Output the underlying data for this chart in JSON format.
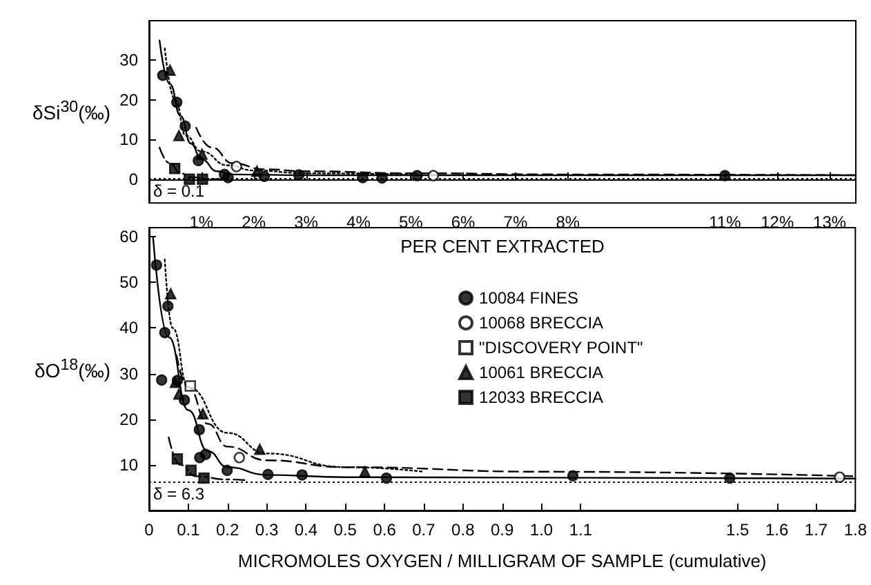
{
  "chart_data": [
    {
      "type": "scatter",
      "xlabel": "PER CENT EXTRACTED",
      "ylabel": "δSi$^{30}$(‰)",
      "xlim": [
        0,
        13.5
      ],
      "ylim": [
        -6,
        40
      ],
      "yticks": [
        0,
        10,
        20,
        30
      ],
      "xticks": [
        {
          "value": 1,
          "label": "1%"
        },
        {
          "value": 2,
          "label": "2%"
        },
        {
          "value": 3,
          "label": "3%"
        },
        {
          "value": 4,
          "label": "4%"
        },
        {
          "value": 5,
          "label": "5%"
        },
        {
          "value": 6,
          "label": "6%"
        },
        {
          "value": 7,
          "label": "7%"
        },
        {
          "value": 8,
          "label": "8%"
        },
        {
          "value": 11,
          "label": "11%"
        },
        {
          "value": 12,
          "label": "12%"
        },
        {
          "value": 13,
          "label": "13%"
        }
      ],
      "ref_lines": [
        {
          "axis": "y",
          "value": 0.1,
          "label": "δ = 0.1",
          "line_style": "dotted"
        }
      ],
      "series": [
        {
          "type": "line",
          "color": "#000000",
          "line_style": "solid",
          "marker": "none",
          "x": [
            0.2,
            0.4,
            0.6,
            0.8,
            1.0,
            1.3,
            1.6,
            3,
            8,
            13.5
          ],
          "values": [
            35,
            24,
            16,
            9,
            5,
            2,
            1.2,
            1,
            1,
            1
          ]
        },
        {
          "type": "line",
          "color": "#000000",
          "line_style": "dashed",
          "marker": "none",
          "x": [
            0.9,
            1.2,
            1.6,
            2.2,
            3,
            5,
            8,
            13.5
          ],
          "values": [
            13,
            8,
            4,
            2.5,
            2,
            1.5,
            1.2,
            1
          ]
        },
        {
          "type": "line",
          "color": "#000000",
          "line_style": "dotted",
          "marker": "none",
          "x": [
            0.3,
            0.5,
            0.7,
            1,
            1.5,
            2,
            3,
            5
          ],
          "values": [
            33,
            20,
            11,
            7,
            3.5,
            2.2,
            1.5,
            1.2
          ]
        },
        {
          "type": "line",
          "color": "#000000",
          "line_style": "dashdot",
          "marker": "none",
          "x": [
            0.2,
            0.4,
            0.6,
            0.8,
            1.2,
            1.5
          ],
          "values": [
            8,
            4,
            1.5,
            0.5,
            0,
            0
          ]
        },
        {
          "color": "#000000",
          "marker": "circle",
          "x": [
            0.26,
            0.53,
            0.69,
            0.94,
            1.44,
            1.51,
            2.2,
            2.86,
            4.08,
            4.45,
            5.12,
            11.0
          ],
          "values": [
            26.2,
            19.4,
            13.4,
            4.7,
            1.2,
            0.4,
            0.7,
            1.1,
            0.4,
            0.3,
            0.9,
            0.9
          ]
        },
        {
          "color": "#ffffff",
          "marker": "circle",
          "x": [
            1.67,
            5.43
          ],
          "values": [
            3.2,
            0.9
          ]
        },
        {
          "color": "#000000",
          "marker": "triangle",
          "x": [
            0.4,
            0.57,
            1.01,
            2.06
          ],
          "values": [
            27.5,
            11,
            6.3,
            2.0
          ]
        },
        {
          "color": "#000000",
          "marker": "square",
          "x": [
            0.49,
            0.77,
            1.02
          ],
          "values": [
            2.7,
            0,
            0
          ]
        }
      ]
    },
    {
      "type": "scatter",
      "xlabel": "MICROMOLES OXYGEN / MILLIGRAM OF SAMPLE (cumulative)",
      "ylabel": "δO$^{18}$(‰)",
      "xlim": [
        0,
        1.8
      ],
      "ylim": [
        0,
        62
      ],
      "yticks": [
        10,
        20,
        30,
        40,
        50,
        60
      ],
      "xticks": [
        0,
        0.1,
        0.2,
        0.3,
        0.4,
        0.5,
        0.6,
        0.7,
        0.8,
        0.9,
        {
          "value": 1.0,
          "label": "1.0"
        },
        1.1,
        1.5,
        1.6,
        1.7,
        1.8
      ],
      "legend": "top right",
      "ref_lines": [
        {
          "axis": "y",
          "value": 6.3,
          "label": "δ = 6.3",
          "line_style": "dotted"
        }
      ],
      "series": [
        {
          "type": "line",
          "color": "#000000",
          "line_style": "solid",
          "marker": "none",
          "x": [
            0.01,
            0.05,
            0.1,
            0.15,
            0.2,
            0.3,
            0.5,
            1.0,
            1.8
          ],
          "values": [
            60,
            38,
            22,
            13,
            9.5,
            7.8,
            7.3,
            7.2,
            7.0
          ]
        },
        {
          "type": "line",
          "color": "#000000",
          "line_style": "dashed",
          "marker": "none",
          "x": [
            0.07,
            0.1,
            0.15,
            0.2,
            0.3,
            0.5,
            1.0,
            1.8
          ],
          "values": [
            34,
            27,
            19,
            14,
            11,
            9.5,
            8.5,
            7.5
          ]
        },
        {
          "type": "line",
          "color": "#000000",
          "line_style": "dotted",
          "marker": "none",
          "x": [
            0.04,
            0.06,
            0.1,
            0.2,
            0.3,
            0.5,
            0.7
          ],
          "values": [
            55,
            40,
            27,
            17,
            12.5,
            9.5,
            8.5
          ]
        },
        {
          "type": "line",
          "color": "#000000",
          "line_style": "dashdot",
          "marker": "none",
          "x": [
            0.05,
            0.08,
            0.12,
            0.2,
            0.25
          ],
          "values": [
            16,
            10,
            7.5,
            6.8,
            6.6
          ]
        },
        {
          "name": "10084 FINES",
          "color": "#000000",
          "marker": "circle",
          "x": [
            0.019,
            0.032,
            0.04,
            0.048,
            0.072,
            0.09,
            0.128,
            0.129,
            0.144,
            0.199,
            0.303,
            0.39,
            0.605,
            1.08,
            1.48
          ],
          "values": [
            53.8,
            28.6,
            39,
            44.8,
            28.5,
            24.2,
            17.7,
            11.6,
            12.3,
            8.8,
            7.9,
            7.8,
            7.1,
            7.6,
            7.1
          ]
        },
        {
          "name": "10068 BRECCIA",
          "color": "#ffffff",
          "marker": "circle",
          "x": [
            0.23,
            1.76
          ],
          "values": [
            11.6,
            7.3
          ]
        },
        {
          "name": "\"DISCOVERY POINT\"",
          "color": "#ffffff",
          "marker": "square",
          "x": [
            0.105
          ],
          "values": [
            27.3
          ]
        },
        {
          "name": "10061 BRECCIA",
          "color": "#000000",
          "marker": "triangle",
          "x": [
            0.055,
            0.067,
            0.076,
            0.137,
            0.282,
            0.55
          ],
          "values": [
            47.5,
            28.1,
            25.5,
            21.2,
            13.4,
            8.5
          ]
        },
        {
          "name": "12033 BRECCIA",
          "color": "#000000",
          "marker": "square",
          "x": [
            0.072,
            0.107,
            0.14
          ],
          "values": [
            11.3,
            8.8,
            7.1
          ]
        }
      ]
    }
  ]
}
